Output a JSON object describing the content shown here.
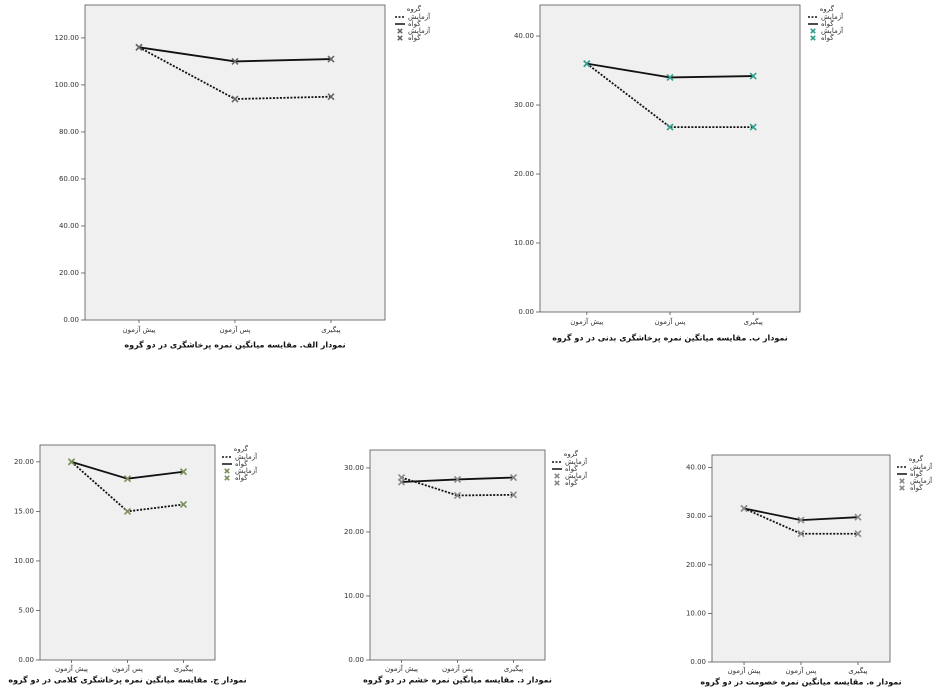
{
  "chart_data": [
    {
      "type": "line",
      "caption": "نمودار الف. مقایسه میانگین نمره پرخاشگری در دو گروه",
      "legend_title": "گروه",
      "categories": [
        "پیش آزمون",
        "پس آزمون",
        "پیگیری"
      ],
      "marker_color": "#666666",
      "series": [
        {
          "name": "آزمایش",
          "color": "#111111",
          "line_style": "dotted",
          "values": [
            116,
            94,
            95
          ]
        },
        {
          "name": "گواه",
          "color": "#111111",
          "line_style": "solid",
          "values": [
            116,
            110,
            111
          ]
        }
      ],
      "ylim": [
        0,
        134
      ],
      "yticks": [
        {
          "value": 0,
          "label": "0.00"
        },
        {
          "value": 20,
          "label": "20.00"
        },
        {
          "value": 40,
          "label": "40.00"
        },
        {
          "value": 60,
          "label": "60.00"
        },
        {
          "value": 80,
          "label": "80.00"
        },
        {
          "value": 100,
          "label": "100.00"
        },
        {
          "value": 120,
          "label": "120.00"
        }
      ]
    },
    {
      "type": "line",
      "caption": "نمودار ب. مقایسه میانگین نمره پرخاشگری بدنی در دو گروه",
      "legend_title": "گروه",
      "categories": [
        "پیش آزمون",
        "پس آزمون",
        "پیگیری"
      ],
      "marker_color": "#2e9e8a",
      "series": [
        {
          "name": "آزمایش",
          "color": "#111111",
          "line_style": "dotted",
          "values": [
            36,
            26.8,
            26.8
          ]
        },
        {
          "name": "گواه",
          "color": "#111111",
          "line_style": "solid",
          "values": [
            36,
            34,
            34.2
          ]
        }
      ],
      "ylim": [
        0,
        44.5
      ],
      "yticks": [
        {
          "value": 0,
          "label": "0.00"
        },
        {
          "value": 10,
          "label": "10.00"
        },
        {
          "value": 20,
          "label": "20.00"
        },
        {
          "value": 30,
          "label": "30.00"
        },
        {
          "value": 40,
          "label": "40.00"
        }
      ]
    },
    {
      "type": "line",
      "caption": "نمودار ج. مقایسه میانگین نمره پرخاشگری کلامی در دو گروه",
      "legend_title": "گروه",
      "categories": [
        "پیش آزمون",
        "پس آزمون",
        "پیگیری"
      ],
      "marker_color": "#7a8f5a",
      "series": [
        {
          "name": "آزمایش",
          "color": "#111111",
          "line_style": "dotted",
          "values": [
            20,
            15,
            15.7
          ]
        },
        {
          "name": "گواه",
          "color": "#111111",
          "line_style": "solid",
          "values": [
            20,
            18.3,
            19
          ]
        }
      ],
      "ylim": [
        0,
        21.7
      ],
      "yticks": [
        {
          "value": 0,
          "label": "0.00"
        },
        {
          "value": 5,
          "label": "5.00"
        },
        {
          "value": 10,
          "label": "10.00"
        },
        {
          "value": 15,
          "label": "15.00"
        },
        {
          "value": 20,
          "label": "20.00"
        }
      ]
    },
    {
      "type": "line",
      "caption": "نمودار د. مقایسه میانگین نمره خشم در دو گروه",
      "legend_title": "گروه",
      "categories": [
        "پیش آزمون",
        "پس آزمون",
        "پیگیری"
      ],
      "marker_color": "#888888",
      "series": [
        {
          "name": "آزمایش",
          "color": "#111111",
          "line_style": "dotted",
          "values": [
            28.5,
            25.7,
            25.8
          ]
        },
        {
          "name": "گواه",
          "color": "#111111",
          "line_style": "solid",
          "values": [
            27.8,
            28.2,
            28.5
          ]
        }
      ],
      "ylim": [
        0,
        32.8
      ],
      "yticks": [
        {
          "value": 0,
          "label": "0.00"
        },
        {
          "value": 10,
          "label": "10.00"
        },
        {
          "value": 20,
          "label": "20.00"
        },
        {
          "value": 30,
          "label": "30.00"
        }
      ]
    },
    {
      "type": "line",
      "caption": "نمودار ه. مقایسه میانگین نمره خصومت در دو گروه",
      "legend_title": "گروه",
      "categories": [
        "پیش آزمون",
        "پس آزمون",
        "پیگیری"
      ],
      "marker_color": "#888888",
      "series": [
        {
          "name": "آزمایش",
          "color": "#111111",
          "line_style": "dotted",
          "values": [
            31.6,
            26.4,
            26.4
          ]
        },
        {
          "name": "گواه",
          "color": "#111111",
          "line_style": "solid",
          "values": [
            31.6,
            29.2,
            29.8
          ]
        }
      ],
      "ylim": [
        0,
        42.6
      ],
      "yticks": [
        {
          "value": 0,
          "label": "0.00"
        },
        {
          "value": 10,
          "label": "10.00"
        },
        {
          "value": 20,
          "label": "20.00"
        },
        {
          "value": 30,
          "label": "30.00"
        },
        {
          "value": 40,
          "label": "40.00"
        }
      ]
    }
  ]
}
